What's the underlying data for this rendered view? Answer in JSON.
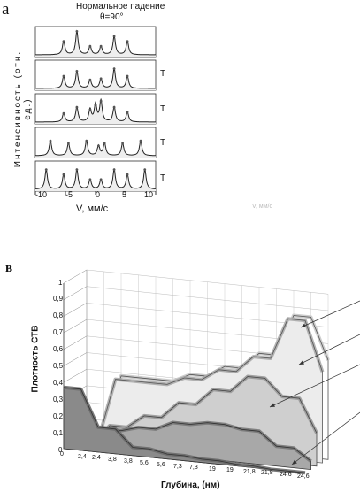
{
  "panel_a": {
    "label": "а",
    "title_line1": "Нормальное падение",
    "title_line2": "θ=90°",
    "y_title": "Интенсивность (отн. ед.)",
    "x_title": "V, мм/с",
    "x_ticks": [
      "-10",
      "-5",
      "0",
      "5",
      "10"
    ],
    "right_marks": [
      "T",
      "T",
      "T",
      "T"
    ],
    "faint_text": "V, мм/с"
  },
  "panel_b": {
    "label": "в",
    "y_title": "Плотность СТВ",
    "x_title": "Глубина, (нм)",
    "y_ticks": [
      "1",
      "0,9",
      "0,8",
      "0,7",
      "0,6",
      "0,5",
      "0,4",
      "0,3",
      "0,2",
      "0,1",
      "0"
    ],
    "x_ticks": [
      "0",
      "2,4",
      "2,4",
      "3,8",
      "3,8",
      "5,6",
      "5,6",
      "7,3",
      "7,3",
      "19",
      "19",
      "21,8",
      "21,8",
      "24,6",
      "24,6"
    ]
  },
  "chart_data": [
    {
      "type": "line",
      "title": "Нормальное падение θ=90°",
      "xlabel": "V, мм/с",
      "ylabel": "Интенсивность (отн. ед.)",
      "xlim": [
        -10,
        10
      ],
      "series": [
        {
          "peaks": [
            -5.3,
            -3.1,
            -0.9,
            0.9,
            3.1,
            5.3
          ],
          "heights": [
            0.55,
            0.95,
            0.35,
            0.35,
            0.75,
            0.55
          ]
        },
        {
          "peaks": [
            -5.3,
            -3.1,
            -0.9,
            0.9,
            3.1,
            5.3
          ],
          "heights": [
            0.5,
            0.7,
            0.35,
            0.4,
            0.8,
            0.5
          ]
        },
        {
          "peaks": [
            -5.3,
            -3.1,
            -0.9,
            0.0,
            0.9,
            3.1,
            5.3
          ],
          "heights": [
            0.35,
            0.6,
            0.5,
            0.7,
            0.85,
            0.6,
            0.4
          ]
        },
        {
          "peaks": [
            -7.5,
            -4.5,
            -1.5,
            0.5,
            1.5,
            4.5,
            7.5
          ],
          "heights": [
            0.6,
            0.5,
            0.6,
            0.4,
            0.5,
            0.5,
            0.6
          ]
        },
        {
          "peaks": [
            -8.2,
            -5.3,
            -3.1,
            -0.9,
            0.9,
            3.1,
            5.3,
            8.2
          ],
          "heights": [
            0.8,
            0.6,
            0.8,
            0.4,
            0.4,
            0.8,
            0.6,
            0.8
          ]
        }
      ]
    },
    {
      "type": "area",
      "xlabel": "Глубина, (нм)",
      "ylabel": "Плотность СТВ",
      "ylim": [
        0,
        1
      ],
      "categories": [
        "0",
        "2,4",
        "2,4",
        "3,8",
        "3,8",
        "5,6",
        "5,6",
        "7,3",
        "7,3",
        "19",
        "19",
        "21,8",
        "21,8",
        "24,6",
        "24,6"
      ],
      "series": [
        {
          "values": [
            0.37,
            0.37,
            0.15,
            0.15,
            0.05,
            0.05,
            0.03,
            0.03,
            0.02,
            0.02,
            0.01,
            0.01,
            0.0,
            0.0,
            0.0
          ]
        },
        {
          "values": [
            0.0,
            0.0,
            0.12,
            0.12,
            0.15,
            0.15,
            0.2,
            0.2,
            0.22,
            0.22,
            0.2,
            0.2,
            0.12,
            0.12,
            0.05
          ]
        },
        {
          "values": [
            0.0,
            0.0,
            0.12,
            0.12,
            0.2,
            0.2,
            0.3,
            0.3,
            0.4,
            0.4,
            0.5,
            0.5,
            0.4,
            0.4,
            0.2
          ]
        },
        {
          "values": [
            0.0,
            0.0,
            0.38,
            0.38,
            0.38,
            0.38,
            0.43,
            0.43,
            0.5,
            0.5,
            0.6,
            0.6,
            0.85,
            0.85,
            0.55
          ]
        },
        {
          "values": [
            0.0,
            0.0,
            0.38,
            0.38,
            0.38,
            0.38,
            0.43,
            0.43,
            0.5,
            0.5,
            0.6,
            0.6,
            0.85,
            0.85,
            0.6
          ]
        }
      ]
    }
  ]
}
